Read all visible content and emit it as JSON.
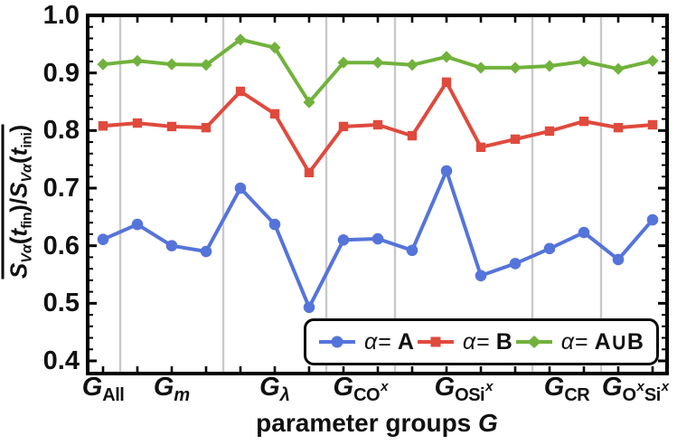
{
  "chart_data": {
    "type": "line",
    "title": "",
    "xlabel_segments": [
      [
        "n",
        "parameter groups "
      ],
      [
        "i",
        "G"
      ]
    ],
    "ylabel_segments": [
      [
        "bi",
        "S"
      ],
      [
        "subi",
        "Vα"
      ],
      [
        "b",
        "("
      ],
      [
        "bi",
        "t"
      ],
      [
        "sub",
        "fin"
      ],
      [
        "b",
        ")/"
      ],
      [
        "bi",
        "S"
      ],
      [
        "subi",
        "Vα"
      ],
      [
        "b",
        "("
      ],
      [
        "bi",
        "t"
      ],
      [
        "sub",
        "ini"
      ],
      [
        "b",
        ")"
      ]
    ],
    "ylabel_plain": "overline( S_Vα(t_fin) / S_Vα(t_ini) )",
    "xlabel_plain": "parameter groups G",
    "ylim": [
      0.4,
      1.0
    ],
    "ytick_values": [
      1.0,
      0.9,
      0.8,
      0.7,
      0.6,
      0.5,
      0.4
    ],
    "ytick_labels": [
      "1.0",
      "0.9",
      "0.8",
      "0.7",
      "0.6",
      "0.5",
      "0.4"
    ],
    "minor_tick_step": 0.02,
    "grid": "vertical-group-separators-only",
    "gridline_color": "#c9c9c9",
    "frame_color": "#000000",
    "n_points": 17,
    "group_sizes": [
      1,
      3,
      3,
      2,
      4,
      2,
      2
    ],
    "categories": [
      {
        "base": "G",
        "plain": "G_All",
        "segs": [
          [
            "sub",
            "All"
          ]
        ]
      },
      {
        "base": "G",
        "plain": "G_m",
        "segs": [
          [
            "subi",
            "m"
          ]
        ]
      },
      {
        "base": "G",
        "plain": "G_λ",
        "segs": [
          [
            "subi",
            "λ"
          ]
        ]
      },
      {
        "base": "G",
        "plain": "G_CO^x",
        "segs": [
          [
            "sub",
            "CO"
          ],
          [
            "sup",
            "x"
          ]
        ]
      },
      {
        "base": "G",
        "plain": "G_OSi^x",
        "segs": [
          [
            "sub",
            "OSi"
          ],
          [
            "sup",
            "x"
          ]
        ]
      },
      {
        "base": "G",
        "plain": "G_CR",
        "segs": [
          [
            "sub",
            "CR"
          ]
        ]
      },
      {
        "base": "G",
        "plain": "G_O^xSi^x",
        "segs": [
          [
            "sub",
            "O"
          ],
          [
            "sup",
            "x"
          ],
          [
            "sub",
            "Si"
          ],
          [
            "sup",
            "x"
          ]
        ]
      }
    ],
    "series": [
      {
        "name": "α= A",
        "set": "A",
        "marker": "circle",
        "color": "#5574da",
        "values": [
          0.611,
          0.637,
          0.6,
          0.59,
          0.7,
          0.637,
          0.493,
          0.61,
          0.612,
          0.592,
          0.73,
          0.548,
          0.569,
          0.595,
          0.623,
          0.576,
          0.645
        ]
      },
      {
        "name": "α= B",
        "set": "B",
        "marker": "square",
        "color": "#df4a3d",
        "values": [
          0.808,
          0.813,
          0.807,
          0.805,
          0.868,
          0.829,
          0.727,
          0.807,
          0.81,
          0.791,
          0.884,
          0.771,
          0.785,
          0.799,
          0.816,
          0.805,
          0.81
        ]
      },
      {
        "name": "α= A∪B",
        "set": "A∪B",
        "marker": "diamond",
        "color": "#71b23c",
        "values": [
          0.915,
          0.921,
          0.915,
          0.914,
          0.958,
          0.944,
          0.849,
          0.918,
          0.918,
          0.914,
          0.928,
          0.909,
          0.909,
          0.912,
          0.92,
          0.907,
          0.921
        ]
      }
    ],
    "legend_position": "inside-bottom-right"
  },
  "legend": {
    "entries": [
      {
        "alpha": "α",
        "eq": "= ",
        "set": "A"
      },
      {
        "alpha": "α",
        "eq": "= ",
        "set": "B"
      },
      {
        "alpha": "α",
        "eq": "= ",
        "set": "A∪B"
      }
    ]
  }
}
